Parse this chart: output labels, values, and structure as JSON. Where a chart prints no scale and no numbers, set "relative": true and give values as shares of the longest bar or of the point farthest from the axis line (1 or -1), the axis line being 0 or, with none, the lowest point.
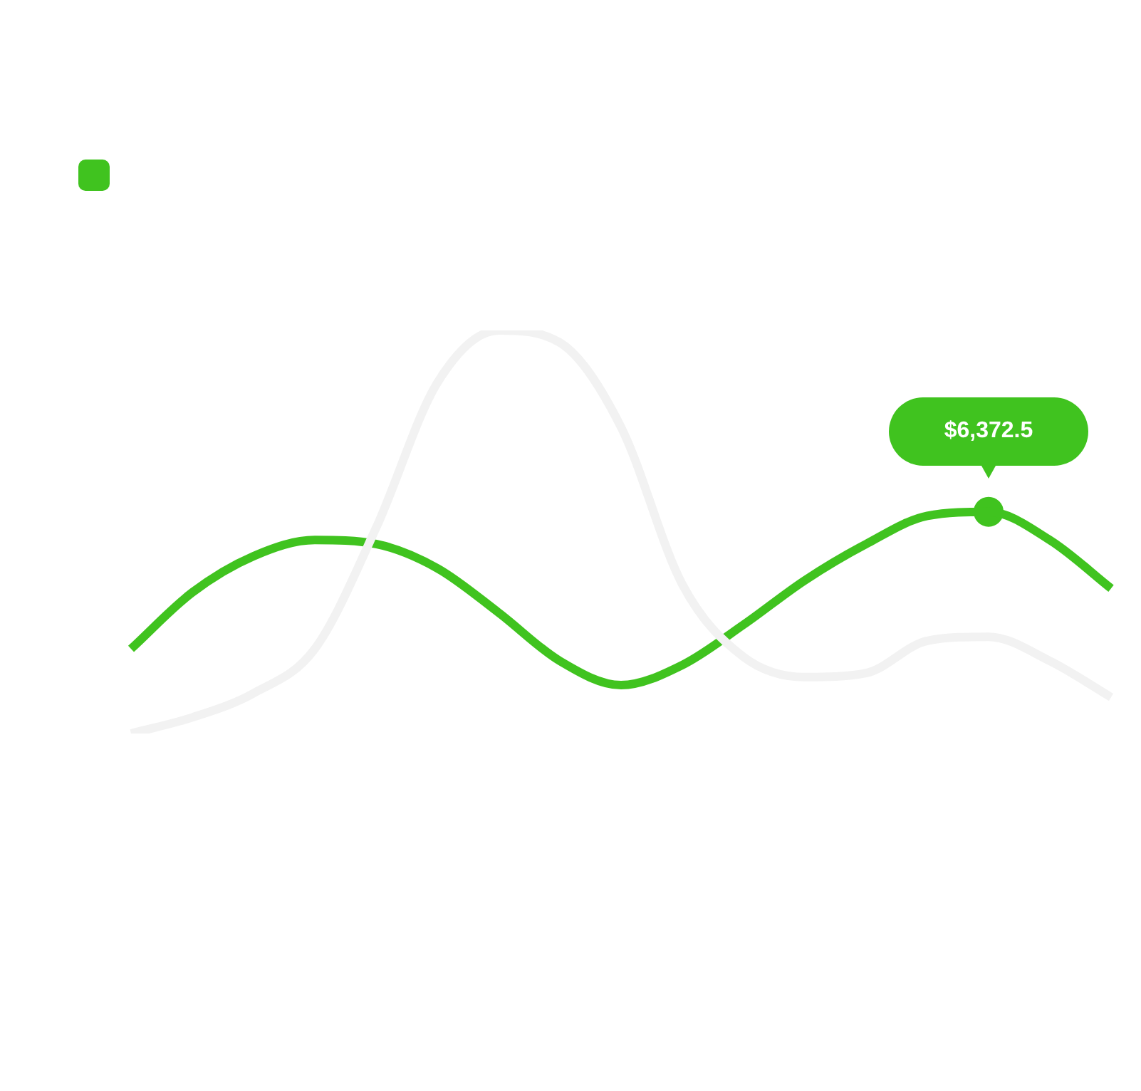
{
  "chart_data": {
    "type": "line",
    "relative": true,
    "annotations": [
      "$6,372.5"
    ],
    "categories": [
      null,
      null,
      null,
      null,
      null,
      null,
      null,
      null,
      null,
      null,
      null,
      null,
      null,
      null,
      null,
      null,
      null
    ],
    "series": [
      {
        "color": "#f2f2f2",
        "values": [
          0,
          0.04,
          0.1,
          0.21,
          0.51,
          0.87,
          1,
          0.97,
          0.76,
          0.37,
          0.19,
          0.14,
          0.15,
          0.23,
          0.24,
          0.18,
          0.09
        ]
      },
      {
        "color": "#40c31f",
        "values": [
          0.21,
          0.35,
          0.44,
          0.48,
          0.47,
          0.41,
          0.3,
          0.18,
          0.12,
          0.17,
          0.27,
          0.38,
          0.47,
          0.54,
          0.55,
          0.48,
          0.36
        ]
      },
      {
        "color": "#40c31f",
        "marker": "circle",
        "values": [
          null,
          null,
          null,
          null,
          null,
          null,
          null,
          null,
          null,
          null,
          null,
          null,
          null,
          null,
          0.55,
          null,
          null
        ]
      }
    ]
  }
}
